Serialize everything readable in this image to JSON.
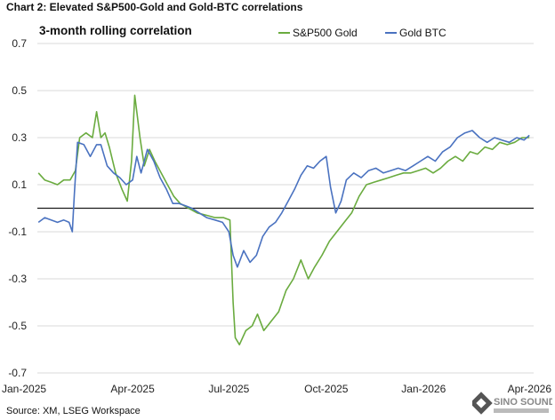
{
  "header": {
    "title": "Chart 2: Elevated S&P500-Gold and Gold-BTC correlations"
  },
  "footer": {
    "source": "Source: XM, LSEG Workspace"
  },
  "logo": {
    "text": "SINO SOUND"
  },
  "colors": {
    "sp500_gold": "#6aab3f",
    "gold_btc": "#4a72c0",
    "zero_line": "#1a1a1a",
    "grid": "#d9d9d9"
  },
  "chart_data": {
    "type": "line",
    "title": "3-month rolling correlation",
    "xlabel": "",
    "ylabel": "",
    "xlim": [
      "2025-01-01",
      "2026-04-15"
    ],
    "ylim": [
      -0.7,
      0.7
    ],
    "yticks": [
      0.7,
      0.5,
      0.3,
      0.1,
      -0.1,
      -0.3,
      -0.5,
      -0.7
    ],
    "ytick_labels": [
      "0.7",
      "0.5",
      "0.3",
      "0.1",
      "-0.1",
      "-0.3",
      "-0.5",
      "-0.7"
    ],
    "xticks": [
      "2025-01-01",
      "2025-04-01",
      "2025-07-01",
      "2025-10-01",
      "2026-01-01",
      "2026-04-01"
    ],
    "xtick_labels": [
      "Jan-2025",
      "Apr-2025",
      "Jul-2025",
      "Oct-2025",
      "Jan-2026",
      "Apr-2026"
    ],
    "grid": true,
    "legend": "top",
    "reference_line": 0,
    "series": [
      {
        "name": "S&P500 Gold",
        "color": "#6aab3f",
        "points": [
          [
            "2025-01-02",
            0.15
          ],
          [
            "2025-01-08",
            0.12
          ],
          [
            "2025-01-14",
            0.11
          ],
          [
            "2025-01-20",
            0.1
          ],
          [
            "2025-01-26",
            0.12
          ],
          [
            "2025-02-01",
            0.12
          ],
          [
            "2025-02-06",
            0.16
          ],
          [
            "2025-02-10",
            0.3
          ],
          [
            "2025-02-16",
            0.32
          ],
          [
            "2025-02-22",
            0.3
          ],
          [
            "2025-02-26",
            0.41
          ],
          [
            "2025-03-02",
            0.3
          ],
          [
            "2025-03-06",
            0.32
          ],
          [
            "2025-03-10",
            0.26
          ],
          [
            "2025-03-16",
            0.15
          ],
          [
            "2025-03-22",
            0.08
          ],
          [
            "2025-03-27",
            0.03
          ],
          [
            "2025-03-31",
            0.2
          ],
          [
            "2025-04-03",
            0.48
          ],
          [
            "2025-04-08",
            0.3
          ],
          [
            "2025-04-12",
            0.18
          ],
          [
            "2025-04-17",
            0.25
          ],
          [
            "2025-04-22",
            0.2
          ],
          [
            "2025-04-28",
            0.15
          ],
          [
            "2025-05-04",
            0.1
          ],
          [
            "2025-05-10",
            0.05
          ],
          [
            "2025-05-16",
            0.02
          ],
          [
            "2025-05-24",
            0.0
          ],
          [
            "2025-06-01",
            -0.02
          ],
          [
            "2025-06-10",
            -0.03
          ],
          [
            "2025-06-18",
            -0.04
          ],
          [
            "2025-06-26",
            -0.04
          ],
          [
            "2025-07-02",
            -0.05
          ],
          [
            "2025-07-05",
            -0.4
          ],
          [
            "2025-07-07",
            -0.55
          ],
          [
            "2025-07-11",
            -0.58
          ],
          [
            "2025-07-17",
            -0.52
          ],
          [
            "2025-07-23",
            -0.5
          ],
          [
            "2025-07-28",
            -0.45
          ],
          [
            "2025-08-03",
            -0.52
          ],
          [
            "2025-08-10",
            -0.48
          ],
          [
            "2025-08-17",
            -0.44
          ],
          [
            "2025-08-24",
            -0.35
          ],
          [
            "2025-08-31",
            -0.3
          ],
          [
            "2025-09-07",
            -0.22
          ],
          [
            "2025-09-14",
            -0.3
          ],
          [
            "2025-09-20",
            -0.25
          ],
          [
            "2025-09-27",
            -0.2
          ],
          [
            "2025-10-04",
            -0.14
          ],
          [
            "2025-10-11",
            -0.1
          ],
          [
            "2025-10-18",
            -0.06
          ],
          [
            "2025-10-25",
            -0.02
          ],
          [
            "2025-11-01",
            0.05
          ],
          [
            "2025-11-08",
            0.1
          ],
          [
            "2025-11-15",
            0.11
          ],
          [
            "2025-11-22",
            0.12
          ],
          [
            "2025-11-29",
            0.13
          ],
          [
            "2025-12-06",
            0.14
          ],
          [
            "2025-12-13",
            0.15
          ],
          [
            "2025-12-20",
            0.15
          ],
          [
            "2025-12-27",
            0.16
          ],
          [
            "2026-01-03",
            0.17
          ],
          [
            "2026-01-10",
            0.15
          ],
          [
            "2026-01-17",
            0.17
          ],
          [
            "2026-01-24",
            0.2
          ],
          [
            "2026-01-31",
            0.22
          ],
          [
            "2026-02-07",
            0.2
          ],
          [
            "2026-02-14",
            0.24
          ],
          [
            "2026-02-21",
            0.23
          ],
          [
            "2026-02-28",
            0.26
          ],
          [
            "2026-03-07",
            0.25
          ],
          [
            "2026-03-14",
            0.28
          ],
          [
            "2026-03-21",
            0.27
          ],
          [
            "2026-03-28",
            0.28
          ],
          [
            "2026-04-04",
            0.3
          ],
          [
            "2026-04-11",
            0.3
          ]
        ]
      },
      {
        "name": "Gold BTC",
        "color": "#4a72c0",
        "points": [
          [
            "2025-01-02",
            -0.06
          ],
          [
            "2025-01-08",
            -0.04
          ],
          [
            "2025-01-14",
            -0.05
          ],
          [
            "2025-01-20",
            -0.06
          ],
          [
            "2025-01-26",
            -0.05
          ],
          [
            "2025-01-31",
            -0.06
          ],
          [
            "2025-02-03",
            -0.1
          ],
          [
            "2025-02-05",
            0.06
          ],
          [
            "2025-02-08",
            0.28
          ],
          [
            "2025-02-14",
            0.27
          ],
          [
            "2025-02-20",
            0.22
          ],
          [
            "2025-02-26",
            0.27
          ],
          [
            "2025-03-02",
            0.27
          ],
          [
            "2025-03-08",
            0.18
          ],
          [
            "2025-03-14",
            0.15
          ],
          [
            "2025-03-20",
            0.13
          ],
          [
            "2025-03-26",
            0.1
          ],
          [
            "2025-04-01",
            0.12
          ],
          [
            "2025-04-05",
            0.22
          ],
          [
            "2025-04-09",
            0.15
          ],
          [
            "2025-04-15",
            0.25
          ],
          [
            "2025-04-21",
            0.2
          ],
          [
            "2025-04-27",
            0.13
          ],
          [
            "2025-05-03",
            0.08
          ],
          [
            "2025-05-09",
            0.02
          ],
          [
            "2025-05-15",
            0.02
          ],
          [
            "2025-05-21",
            0.01
          ],
          [
            "2025-05-27",
            0.0
          ],
          [
            "2025-06-03",
            -0.02
          ],
          [
            "2025-06-10",
            -0.04
          ],
          [
            "2025-06-18",
            -0.05
          ],
          [
            "2025-06-25",
            -0.06
          ],
          [
            "2025-07-01",
            -0.1
          ],
          [
            "2025-07-05",
            -0.2
          ],
          [
            "2025-07-09",
            -0.25
          ],
          [
            "2025-07-15",
            -0.18
          ],
          [
            "2025-07-21",
            -0.23
          ],
          [
            "2025-07-27",
            -0.2
          ],
          [
            "2025-08-02",
            -0.12
          ],
          [
            "2025-08-08",
            -0.08
          ],
          [
            "2025-08-14",
            -0.06
          ],
          [
            "2025-08-20",
            -0.02
          ],
          [
            "2025-08-26",
            0.03
          ],
          [
            "2025-09-01",
            0.08
          ],
          [
            "2025-09-07",
            0.14
          ],
          [
            "2025-09-13",
            0.18
          ],
          [
            "2025-09-19",
            0.17
          ],
          [
            "2025-09-25",
            0.2
          ],
          [
            "2025-10-01",
            0.22
          ],
          [
            "2025-10-05",
            0.09
          ],
          [
            "2025-10-10",
            -0.02
          ],
          [
            "2025-10-15",
            0.03
          ],
          [
            "2025-10-20",
            0.12
          ],
          [
            "2025-10-27",
            0.15
          ],
          [
            "2025-11-03",
            0.13
          ],
          [
            "2025-11-10",
            0.16
          ],
          [
            "2025-11-17",
            0.17
          ],
          [
            "2025-11-24",
            0.15
          ],
          [
            "2025-12-01",
            0.16
          ],
          [
            "2025-12-08",
            0.17
          ],
          [
            "2025-12-15",
            0.16
          ],
          [
            "2025-12-22",
            0.18
          ],
          [
            "2025-12-29",
            0.2
          ],
          [
            "2026-01-05",
            0.22
          ],
          [
            "2026-01-12",
            0.2
          ],
          [
            "2026-01-19",
            0.24
          ],
          [
            "2026-01-26",
            0.26
          ],
          [
            "2026-02-02",
            0.3
          ],
          [
            "2026-02-09",
            0.32
          ],
          [
            "2026-02-16",
            0.33
          ],
          [
            "2026-02-23",
            0.3
          ],
          [
            "2026-03-02",
            0.28
          ],
          [
            "2026-03-09",
            0.3
          ],
          [
            "2026-03-16",
            0.29
          ],
          [
            "2026-03-23",
            0.28
          ],
          [
            "2026-03-30",
            0.3
          ],
          [
            "2026-04-06",
            0.29
          ],
          [
            "2026-04-11",
            0.31
          ]
        ]
      }
    ]
  }
}
